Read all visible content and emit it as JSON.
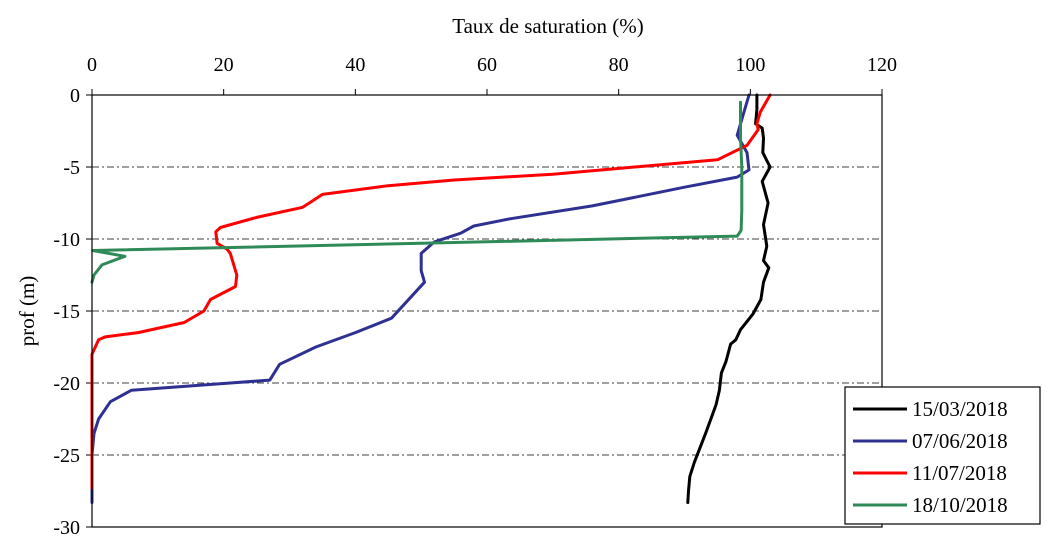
{
  "chart_data": {
    "type": "line",
    "title": "",
    "xlabel": "Taux de saturation (%)",
    "ylabel": "prof (m)",
    "xlim": [
      0,
      120
    ],
    "ylim": [
      -30,
      0
    ],
    "x_ticks": [
      0,
      20,
      40,
      60,
      80,
      100,
      120
    ],
    "y_ticks": [
      0,
      -5,
      -10,
      -15,
      -20,
      -25,
      -30
    ],
    "x_tick_labels": [
      "0",
      "20",
      "40",
      "60",
      "80",
      "100",
      "120"
    ],
    "y_tick_labels": [
      "0",
      "-5",
      "-10",
      "-15",
      "-20",
      "-25",
      "-30"
    ],
    "x_axis_position": "top",
    "grid": "horizontal dash-dot",
    "legend_position": "bottom-right",
    "series": [
      {
        "name": "15/03/2018",
        "color": "#000000",
        "points": [
          [
            101,
            0
          ],
          [
            101,
            -1
          ],
          [
            100.8,
            -2
          ],
          [
            101.8,
            -2.3
          ],
          [
            102,
            -3
          ],
          [
            101.9,
            -4
          ],
          [
            103,
            -5
          ],
          [
            101.8,
            -6
          ],
          [
            102.7,
            -7.5
          ],
          [
            102,
            -9
          ],
          [
            102.5,
            -10.5
          ],
          [
            102,
            -11.5
          ],
          [
            102.8,
            -12
          ],
          [
            102,
            -13
          ],
          [
            101.6,
            -14.2
          ],
          [
            100.4,
            -15.2
          ],
          [
            98.5,
            -16.3
          ],
          [
            97.8,
            -17
          ],
          [
            97,
            -17.3
          ],
          [
            96.3,
            -18.5
          ],
          [
            95.6,
            -19.3
          ],
          [
            95.3,
            -20.5
          ],
          [
            94.8,
            -21.5
          ],
          [
            93.2,
            -23.5
          ],
          [
            91.5,
            -25.5
          ],
          [
            90.8,
            -26.5
          ],
          [
            90.6,
            -27.5
          ],
          [
            90.5,
            -28.3
          ]
        ]
      },
      {
        "name": "07/06/2018",
        "color": "#2E3192",
        "points": [
          [
            99.8,
            0
          ],
          [
            98.5,
            -2
          ],
          [
            98,
            -2.8
          ],
          [
            99.5,
            -4
          ],
          [
            99.8,
            -5.2
          ],
          [
            98,
            -5.7
          ],
          [
            90,
            -6.4
          ],
          [
            76,
            -7.7
          ],
          [
            63.5,
            -8.6
          ],
          [
            58,
            -9.1
          ],
          [
            56,
            -9.6
          ],
          [
            52,
            -10.2
          ],
          [
            50,
            -11
          ],
          [
            50,
            -12.2
          ],
          [
            50.5,
            -13
          ],
          [
            47.5,
            -14.5
          ],
          [
            45.5,
            -15.5
          ],
          [
            40,
            -16.5
          ],
          [
            34,
            -17.5
          ],
          [
            28.5,
            -18.7
          ],
          [
            27,
            -19.8
          ],
          [
            21,
            -20
          ],
          [
            6,
            -20.5
          ],
          [
            2.8,
            -21.3
          ],
          [
            1,
            -22.5
          ],
          [
            0.3,
            -23.5
          ],
          [
            0,
            -25
          ],
          [
            0,
            -28.3
          ]
        ]
      },
      {
        "name": "11/07/2018",
        "color": "#FF0000",
        "points": [
          [
            103,
            0
          ],
          [
            101.5,
            -1.2
          ],
          [
            101,
            -2
          ],
          [
            101.2,
            -2.4
          ],
          [
            99.5,
            -3.5
          ],
          [
            95,
            -4.5
          ],
          [
            70,
            -5.5
          ],
          [
            55,
            -5.9
          ],
          [
            45,
            -6.3
          ],
          [
            35,
            -6.9
          ],
          [
            33,
            -7.5
          ],
          [
            32,
            -7.8
          ],
          [
            25,
            -8.5
          ],
          [
            19.5,
            -9.2
          ],
          [
            18.8,
            -9.5
          ],
          [
            19,
            -10.3
          ],
          [
            20.5,
            -10.7
          ],
          [
            21,
            -11
          ],
          [
            22,
            -12.5
          ],
          [
            21.8,
            -13.3
          ],
          [
            18,
            -14.2
          ],
          [
            17,
            -15
          ],
          [
            14,
            -15.8
          ],
          [
            7,
            -16.5
          ],
          [
            2,
            -16.8
          ],
          [
            1,
            -17
          ],
          [
            0,
            -18
          ],
          [
            0,
            -27.3
          ]
        ]
      },
      {
        "name": "18/10/2018",
        "color": "#2E8B57",
        "points": [
          [
            98.5,
            -0.5
          ],
          [
            98.5,
            -3
          ],
          [
            98.7,
            -5
          ],
          [
            98.7,
            -8
          ],
          [
            98.6,
            -9.4
          ],
          [
            98,
            -9.8
          ],
          [
            50,
            -10.3
          ],
          [
            0.1,
            -10.8
          ],
          [
            5,
            -11.2
          ],
          [
            1.5,
            -11.8
          ],
          [
            0.3,
            -12.5
          ],
          [
            0,
            -13
          ]
        ]
      }
    ]
  }
}
